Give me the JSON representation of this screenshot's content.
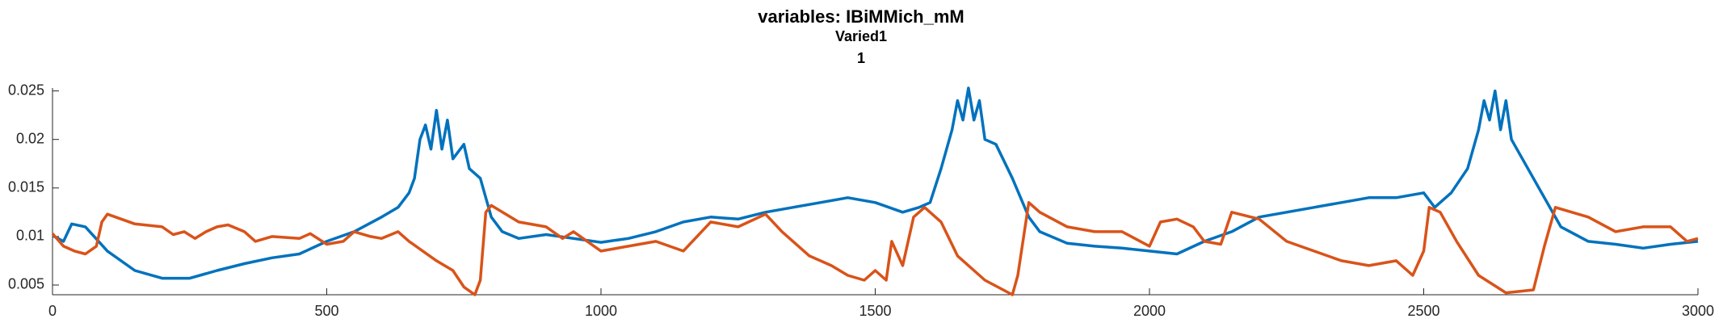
{
  "chart_data": {
    "type": "line",
    "title": "variables: IBiMMich_mM",
    "subtitle": "Varied1",
    "subtitle2": "1",
    "xlim": [
      0,
      3000
    ],
    "xticks": [
      0,
      500,
      1000,
      1500,
      2000,
      2500,
      3000
    ],
    "ylim": [
      0.004,
      0.0253
    ],
    "yticks": [
      0.005,
      0.01,
      0.015,
      0.02,
      0.025
    ],
    "series": [
      {
        "color": "#0072bd",
        "x": [
          0,
          20,
          35,
          60,
          100,
          150,
          200,
          250,
          300,
          350,
          400,
          450,
          500,
          550,
          600,
          630,
          650,
          660,
          670,
          680,
          690,
          700,
          710,
          720,
          730,
          750,
          760,
          780,
          800,
          820,
          850,
          900,
          950,
          1000,
          1050,
          1100,
          1150,
          1200,
          1250,
          1300,
          1350,
          1400,
          1450,
          1500,
          1550,
          1580,
          1600,
          1620,
          1640,
          1650,
          1660,
          1670,
          1680,
          1690,
          1700,
          1720,
          1750,
          1780,
          1800,
          1850,
          1900,
          1950,
          2000,
          2050,
          2100,
          2150,
          2200,
          2250,
          2300,
          2350,
          2400,
          2450,
          2500,
          2520,
          2550,
          2580,
          2600,
          2610,
          2620,
          2630,
          2640,
          2650,
          2660,
          2700,
          2750,
          2800,
          2850,
          2900,
          2950,
          3000
        ],
        "values": [
          0.0101,
          0.0095,
          0.0113,
          0.011,
          0.0085,
          0.0065,
          0.0057,
          0.0057,
          0.0065,
          0.0072,
          0.0078,
          0.0082,
          0.0095,
          0.0105,
          0.012,
          0.013,
          0.0145,
          0.016,
          0.02,
          0.0215,
          0.019,
          0.023,
          0.019,
          0.022,
          0.018,
          0.0195,
          0.017,
          0.016,
          0.012,
          0.0105,
          0.0098,
          0.0102,
          0.0098,
          0.0094,
          0.0098,
          0.0105,
          0.0115,
          0.012,
          0.0118,
          0.0125,
          0.013,
          0.0135,
          0.014,
          0.0135,
          0.0125,
          0.013,
          0.0135,
          0.017,
          0.021,
          0.024,
          0.022,
          0.0253,
          0.022,
          0.024,
          0.02,
          0.0195,
          0.016,
          0.012,
          0.0105,
          0.0093,
          0.009,
          0.0088,
          0.0085,
          0.0082,
          0.0095,
          0.0105,
          0.012,
          0.0125,
          0.013,
          0.0135,
          0.014,
          0.014,
          0.0145,
          0.013,
          0.0145,
          0.017,
          0.021,
          0.024,
          0.022,
          0.025,
          0.021,
          0.024,
          0.02,
          0.016,
          0.011,
          0.0095,
          0.0092,
          0.0088,
          0.0092,
          0.0095
        ]
      },
      {
        "color": "#d95319",
        "x": [
          0,
          20,
          40,
          60,
          80,
          90,
          100,
          150,
          200,
          220,
          240,
          260,
          280,
          300,
          320,
          350,
          370,
          400,
          450,
          470,
          500,
          530,
          550,
          580,
          600,
          630,
          650,
          700,
          730,
          750,
          770,
          780,
          790,
          800,
          850,
          900,
          930,
          950,
          1000,
          1050,
          1100,
          1150,
          1200,
          1250,
          1300,
          1330,
          1380,
          1420,
          1450,
          1480,
          1500,
          1520,
          1530,
          1550,
          1570,
          1590,
          1620,
          1650,
          1700,
          1750,
          1760,
          1780,
          1800,
          1850,
          1900,
          1950,
          2000,
          2020,
          2050,
          2080,
          2100,
          2130,
          2150,
          2200,
          2250,
          2300,
          2350,
          2400,
          2450,
          2480,
          2500,
          2510,
          2530,
          2560,
          2600,
          2650,
          2700,
          2720,
          2740,
          2800,
          2850,
          2900,
          2950,
          2980,
          3000
        ],
        "values": [
          0.0103,
          0.009,
          0.0085,
          0.0082,
          0.009,
          0.0115,
          0.0123,
          0.0113,
          0.011,
          0.0102,
          0.0105,
          0.0098,
          0.0105,
          0.011,
          0.0112,
          0.0105,
          0.0095,
          0.01,
          0.0098,
          0.0103,
          0.0092,
          0.0095,
          0.0105,
          0.01,
          0.0098,
          0.0105,
          0.0095,
          0.0075,
          0.0065,
          0.0048,
          0.004,
          0.0055,
          0.0125,
          0.0132,
          0.0115,
          0.011,
          0.0098,
          0.0105,
          0.0085,
          0.009,
          0.0095,
          0.0085,
          0.0115,
          0.011,
          0.0123,
          0.0105,
          0.008,
          0.007,
          0.006,
          0.0055,
          0.0065,
          0.0055,
          0.0095,
          0.007,
          0.012,
          0.013,
          0.0115,
          0.008,
          0.0055,
          0.004,
          0.006,
          0.0135,
          0.0125,
          0.011,
          0.0105,
          0.0105,
          0.009,
          0.0115,
          0.0118,
          0.011,
          0.0095,
          0.0092,
          0.0125,
          0.0118,
          0.0095,
          0.0085,
          0.0075,
          0.007,
          0.0075,
          0.006,
          0.0085,
          0.013,
          0.0125,
          0.0095,
          0.006,
          0.0042,
          0.0045,
          0.009,
          0.013,
          0.012,
          0.0105,
          0.011,
          0.011,
          0.0095,
          0.0098
        ]
      }
    ]
  }
}
